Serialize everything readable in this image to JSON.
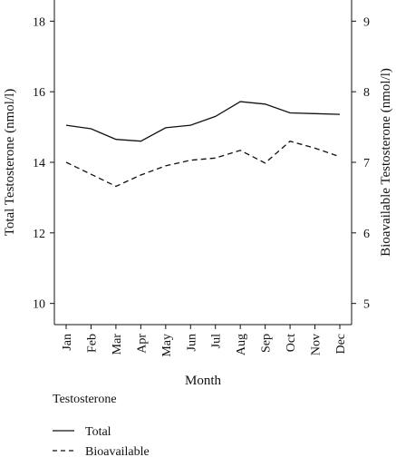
{
  "chart_data": {
    "type": "line",
    "xlabel": "Month",
    "ylabel": "Total Testosterone (nmol/l)",
    "y2label": "Bioavailable Testosterone (nmol/l)",
    "categories": [
      "Jan",
      "Feb",
      "Mar",
      "Apr",
      "May",
      "Jun",
      "Jul",
      "Aug",
      "Sep",
      "Oct",
      "Nov",
      "Dec"
    ],
    "ylim": [
      9.4,
      18.6
    ],
    "y2lim": [
      4.7,
      9.3
    ],
    "yticks": [
      10,
      12,
      14,
      16,
      18
    ],
    "y2ticks": [
      5,
      6,
      7,
      8,
      9
    ],
    "series": [
      {
        "name": "Total",
        "axis": "left",
        "style": "solid",
        "values": [
          15.05,
          14.95,
          14.65,
          14.6,
          14.98,
          15.05,
          15.3,
          15.72,
          15.65,
          15.4,
          15.38,
          15.36
        ]
      },
      {
        "name": "Bioavailable",
        "axis": "right",
        "style": "dashed",
        "values": [
          7.0,
          6.83,
          6.66,
          6.82,
          6.95,
          7.03,
          7.06,
          7.17,
          6.99,
          7.3,
          7.2,
          7.08
        ]
      }
    ],
    "legend": {
      "title": "Testosterone",
      "placement": "bottom-left"
    },
    "grid": false,
    "line_color": "#111111"
  }
}
